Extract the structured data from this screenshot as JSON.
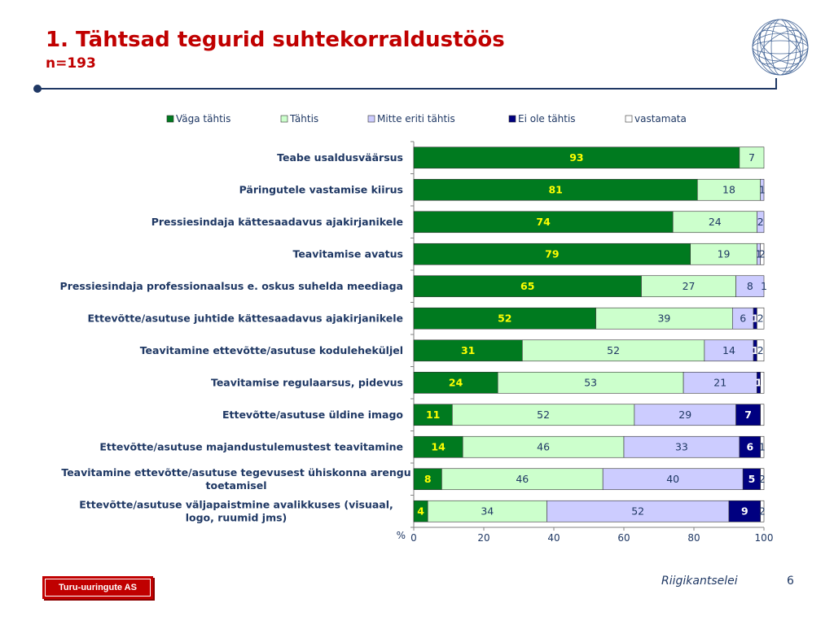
{
  "slide": {
    "title": "1. Tähtsad tegurid suhtekorraldustöös",
    "subtitle": "n=193",
    "company_logo": "Turu-uuringute AS",
    "footer_name": "Riigikantselei",
    "page_number": "6"
  },
  "colors": {
    "title": "#c00000",
    "label": "#1f3864",
    "vaga": "#007a1f",
    "tahtis": "#ccffcc",
    "mitte": "#ccccff",
    "ei_ole": "#000080",
    "vastamata": "#ffffff"
  },
  "chart_data": {
    "type": "bar",
    "orientation": "horizontal",
    "stacked": true,
    "xlabel": "%",
    "xlim": [
      0,
      100
    ],
    "xticks": [
      0,
      20,
      40,
      60,
      80,
      100
    ],
    "legend": "top",
    "categories": [
      "Teabe usaldusväärsus",
      "Päringutele vastamise kiirus",
      "Pressiesindaja kättesaadavus ajakirjanikele",
      "Teavitamise avatus",
      "Pressiesindaja professionaalsus e. oskus suhelda meediaga",
      "Ettevõtte/asutuse juhtide kättesaadavus ajakirjanikele",
      "Teavitamine ettevõtte/asutuse koduleheküljel",
      "Teavitamise regulaarsus, pidevus",
      "Ettevõtte/asutuse üldine imago",
      "Ettevõtte/asutuse majandustulemustest teavitamine",
      "Teavitamine ettevõtte/asutuse tegevusest ühiskonna arengu toetamisel",
      "Ettevõtte/asutuse väljapaistmine avalikkuses (visuaal, logo, ruumid jms)"
    ],
    "series": [
      {
        "name": "Väga tähtis",
        "color": "#007a1f",
        "values": [
          93,
          81,
          74,
          79,
          65,
          52,
          31,
          24,
          11,
          14,
          8,
          4
        ]
      },
      {
        "name": "Tähtis",
        "color": "#ccffcc",
        "values": [
          7,
          18,
          24,
          19,
          27,
          39,
          52,
          53,
          52,
          46,
          46,
          34
        ]
      },
      {
        "name": "Mitte eriti tähtis",
        "color": "#ccccff",
        "values": [
          0,
          1,
          2,
          1,
          8,
          6,
          14,
          21,
          29,
          33,
          40,
          52
        ]
      },
      {
        "name": "Ei ole tähtis",
        "color": "#000080",
        "values": [
          0,
          0,
          0,
          0,
          0,
          1,
          1,
          1,
          7,
          6,
          5,
          9
        ]
      },
      {
        "name": "vastamata",
        "color": "#ffffff",
        "values": [
          0,
          0,
          0,
          2,
          1,
          2,
          2,
          1,
          1,
          1,
          2,
          2
        ]
      }
    ],
    "bar_labels": [
      [
        "93",
        "7",
        "",
        "",
        ""
      ],
      [
        "81",
        "18",
        "1",
        "",
        ""
      ],
      [
        "74",
        "24",
        "2",
        "",
        ""
      ],
      [
        "79",
        "19",
        "1",
        "",
        "2"
      ],
      [
        "65",
        "27",
        "8",
        "",
        "1"
      ],
      [
        "52",
        "39",
        "6",
        "1",
        "2"
      ],
      [
        "31",
        "52",
        "14",
        "1",
        "2"
      ],
      [
        "24",
        "53",
        "21",
        "1",
        ""
      ],
      [
        "11",
        "52",
        "29",
        "7",
        ""
      ],
      [
        "14",
        "46",
        "33",
        "6",
        "1"
      ],
      [
        "8",
        "46",
        "40",
        "5",
        "2"
      ],
      [
        "4",
        "34",
        "52",
        "9",
        "2"
      ]
    ]
  }
}
